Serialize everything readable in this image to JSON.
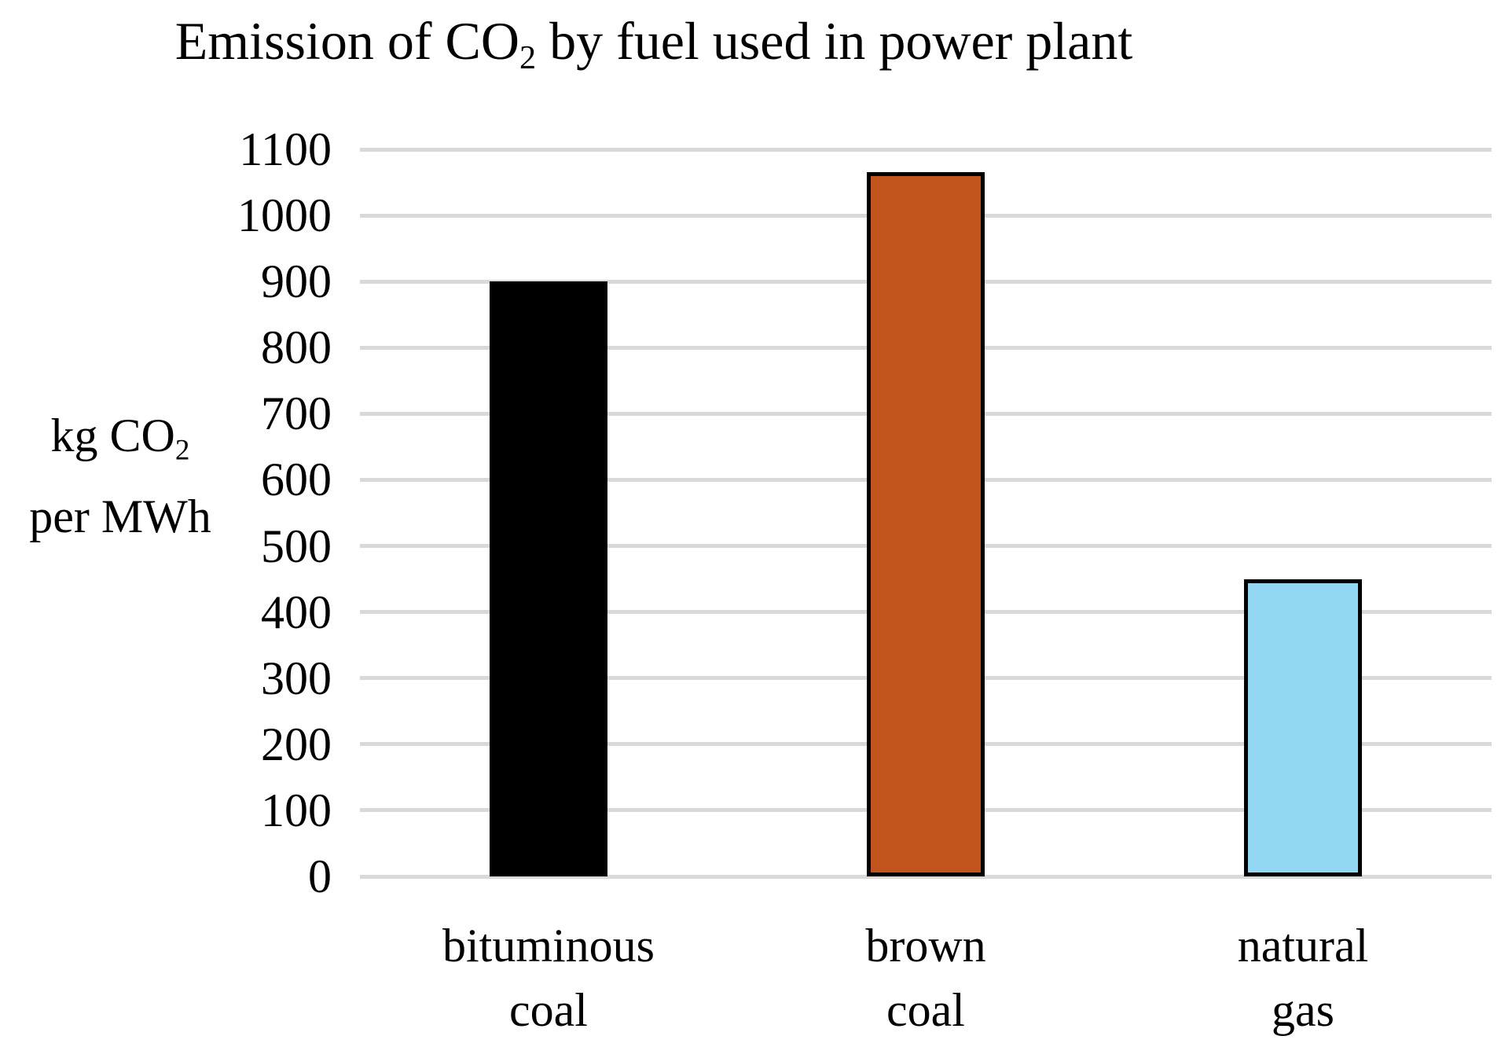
{
  "title": {
    "prefix": "Emission of CO",
    "sub": "2",
    "suffix": " by fuel used in power plant",
    "full": "Emission of CO2 by fuel used in power plant"
  },
  "y_axis": {
    "label_line1_prefix": "kg CO",
    "label_line1_sub": "2",
    "label_line2": "per MWh",
    "full_label": "kg CO2 per MWh"
  },
  "chart_data": {
    "type": "bar",
    "title": "Emission of CO2 by fuel used in power plant",
    "ylabel": "kg CO2 per MWh",
    "xlabel": "",
    "categories": [
      "bituminous coal",
      "brown coal",
      "natural gas"
    ],
    "category_lines": [
      [
        "bituminous",
        "coal"
      ],
      [
        "brown",
        "coal"
      ],
      [
        "natural",
        "gas"
      ]
    ],
    "values": [
      900,
      1065,
      450
    ],
    "bar_colors": [
      "#000000",
      "#C1531C",
      "#92D8F2"
    ],
    "bar_border_color": "#000000",
    "ylim": [
      0,
      1100
    ],
    "yticks": [
      0,
      100,
      200,
      300,
      400,
      500,
      600,
      700,
      800,
      900,
      1000,
      1100
    ],
    "gridline_color": "#D9D9D9",
    "grid": true,
    "legend_position": "none",
    "background": "#FFFFFF"
  }
}
